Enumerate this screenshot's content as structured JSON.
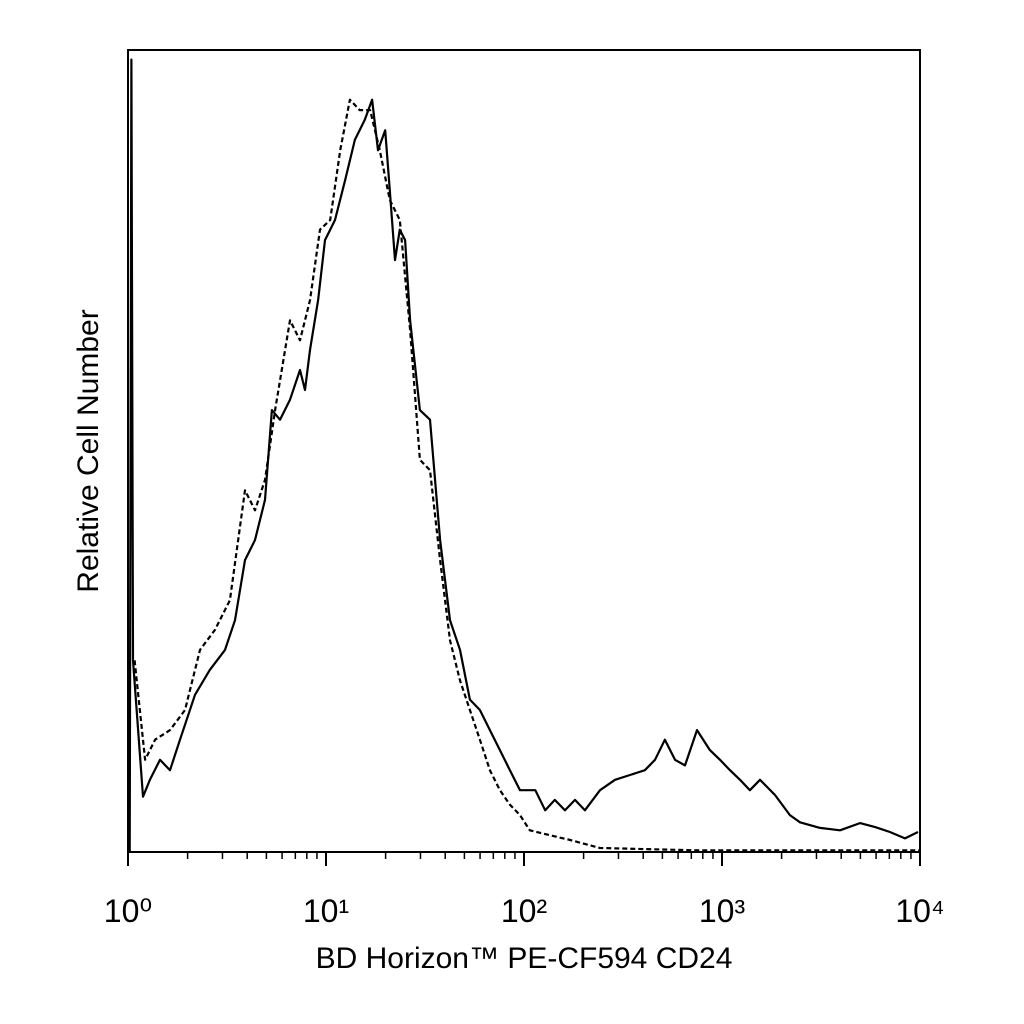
{
  "chart_data": {
    "type": "line",
    "xlabel": "BD Horizon™ PE-CF594 CD24",
    "ylabel": "Relative Cell Number",
    "xscale": "log",
    "xlim": [
      1,
      10000
    ],
    "ylim": [
      0,
      100
    ],
    "xticks": [
      {
        "value": 1,
        "label": "10⁰"
      },
      {
        "value": 10,
        "label": "10¹"
      },
      {
        "value": 100,
        "label": "10²"
      },
      {
        "value": 1000,
        "label": "10³"
      },
      {
        "value": 10000,
        "label": "10⁴"
      }
    ],
    "xminorticks": [
      2,
      3,
      4,
      5,
      6,
      7,
      8,
      9,
      20,
      30,
      40,
      50,
      60,
      70,
      80,
      90,
      200,
      300,
      400,
      500,
      600,
      700,
      800,
      900,
      2000,
      3000,
      4000,
      5000,
      6000,
      7000,
      8000,
      9000
    ],
    "series": [
      {
        "color": "#000000",
        "dashed": false,
        "x": [
          1.02,
          1.04,
          1.06,
          1.19,
          1.29,
          1.45,
          1.63,
          1.83,
          2.18,
          2.59,
          3.09,
          3.47,
          3.9,
          4.38,
          4.92,
          5.33,
          5.86,
          6.58,
          7.39,
          7.83,
          8.3,
          9.12,
          9.89,
          11.1,
          12.5,
          14.0,
          15.7,
          17.1,
          18.3,
          19.9,
          21.0,
          22.3,
          23.6,
          25.1,
          26.6,
          29.8,
          33.5,
          37.7,
          42.3,
          47.5,
          53.3,
          59.9,
          67.3,
          75.6,
          84.9,
          95.4,
          114,
          128,
          143,
          161,
          181,
          203,
          242,
          288,
          343,
          408,
          459,
          515,
          579,
          650,
          748,
          869,
          977,
          1097,
          1233,
          1384,
          1556,
          1854,
          2203,
          2477,
          3126,
          3945,
          4977,
          5929,
          7047,
          8395,
          9772
        ],
        "values": [
          0,
          98.8,
          23.9,
          6.9,
          9.0,
          11.5,
          10.2,
          14.0,
          19.6,
          22.7,
          25.2,
          28.9,
          36.4,
          38.9,
          43.9,
          55.1,
          53.9,
          56.4,
          60.1,
          57.6,
          62.6,
          68.8,
          76.3,
          78.8,
          83.8,
          88.8,
          91.3,
          93.8,
          87.5,
          90.0,
          82.5,
          73.8,
          77.6,
          76.3,
          66.3,
          55.1,
          53.9,
          38.9,
          28.9,
          25.2,
          19.0,
          17.7,
          15.2,
          12.7,
          10.2,
          7.7,
          7.7,
          5.2,
          6.5,
          5.2,
          6.5,
          5.2,
          7.7,
          9.0,
          9.6,
          10.2,
          11.5,
          14.0,
          11.5,
          10.8,
          15.2,
          12.7,
          11.5,
          10.2,
          9.0,
          7.7,
          9.0,
          7.1,
          4.6,
          3.7,
          3.0,
          2.7,
          3.6,
          3.1,
          2.5,
          1.7,
          2.5
        ]
      },
      {
        "color": "#000000",
        "dashed": true,
        "x": [
          1.08,
          1.22,
          1.37,
          1.63,
          1.94,
          2.31,
          2.75,
          3.27,
          3.9,
          4.38,
          4.92,
          5.53,
          6.58,
          7.39,
          8.3,
          9.33,
          10.5,
          11.8,
          13.2,
          14.8,
          16.7,
          18.7,
          21.0,
          23.6,
          26.6,
          29.8,
          33.5,
          37.7,
          42.3,
          47.5,
          53.3,
          59.9,
          67.3,
          75.6,
          84.9,
          95.4,
          107,
          135,
          171,
          242,
          774,
          10000
        ],
        "values": [
          23.9,
          11.5,
          14.0,
          15.2,
          17.7,
          25.2,
          27.7,
          31.4,
          45.1,
          42.6,
          46.4,
          55.1,
          66.3,
          63.8,
          68.8,
          77.6,
          78.8,
          87.5,
          93.8,
          92.5,
          92.5,
          87.5,
          81.3,
          78.8,
          65.1,
          48.9,
          47.6,
          36.4,
          26.4,
          21.4,
          17.7,
          14.0,
          10.2,
          7.7,
          5.9,
          4.6,
          2.7,
          2.1,
          1.5,
          0.5,
          0.2,
          0.2
        ]
      }
    ]
  }
}
